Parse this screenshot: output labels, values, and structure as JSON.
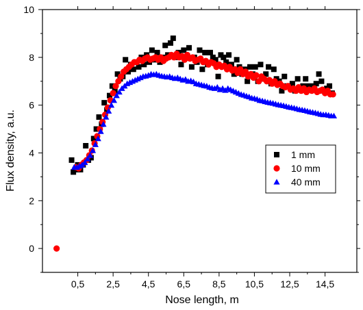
{
  "chart_data": {
    "type": "scatter",
    "title": "",
    "xlabel": "Nose length, m",
    "ylabel": "Flux density, a.u.",
    "xlim": [
      -1.5,
      16.3
    ],
    "ylim": [
      -1,
      10
    ],
    "x_ticks": [
      0.5,
      2.5,
      4.5,
      6.5,
      8.5,
      10.5,
      12.5,
      14.5
    ],
    "x_tick_labels": [
      "0,5",
      "2,5",
      "4,5",
      "6,5",
      "8,5",
      "10,5",
      "12,5",
      "14,5"
    ],
    "y_ticks": [
      0,
      2,
      4,
      6,
      8,
      10
    ],
    "y_tick_labels": [
      "0",
      "2",
      "4",
      "6",
      "8",
      "10"
    ],
    "grid": false,
    "legend_position": "center-right",
    "series": [
      {
        "name": "1 mm",
        "marker": "square",
        "color": "#000000",
        "x": [
          0.15,
          0.25,
          0.35,
          0.5,
          0.65,
          0.8,
          0.95,
          1.1,
          1.25,
          1.4,
          1.55,
          1.7,
          1.85,
          2.0,
          2.15,
          2.3,
          2.45,
          2.6,
          2.75,
          2.9,
          3.05,
          3.2,
          3.35,
          3.5,
          3.65,
          3.8,
          3.95,
          4.1,
          4.25,
          4.4,
          4.55,
          4.7,
          4.85,
          5.0,
          5.15,
          5.3,
          5.45,
          5.6,
          5.75,
          5.9,
          6.05,
          6.2,
          6.35,
          6.5,
          6.65,
          6.8,
          6.95,
          7.1,
          7.25,
          7.4,
          7.55,
          7.7,
          7.85,
          8.0,
          8.15,
          8.3,
          8.45,
          8.6,
          8.75,
          8.9,
          9.05,
          9.2,
          9.35,
          9.5,
          9.65,
          9.8,
          9.95,
          10.1,
          10.25,
          10.4,
          10.55,
          10.7,
          10.85,
          11.0,
          11.15,
          11.3,
          11.45,
          11.6,
          11.75,
          11.9,
          12.05,
          12.2,
          12.35,
          12.5,
          12.65,
          12.8,
          12.95,
          13.1,
          13.25,
          13.4,
          13.55,
          13.7,
          13.85,
          14.0,
          14.15,
          14.3,
          14.45,
          14.6,
          14.75,
          14.9
        ],
        "y": [
          3.7,
          3.2,
          3.3,
          3.5,
          3.3,
          3.5,
          4.3,
          3.7,
          3.8,
          4.6,
          5.0,
          5.5,
          5.2,
          6.1,
          5.8,
          6.4,
          6.8,
          6.6,
          7.3,
          7.1,
          7.2,
          7.9,
          7.4,
          7.7,
          7.5,
          7.8,
          7.6,
          8.0,
          7.7,
          8.1,
          7.8,
          8.3,
          7.9,
          8.2,
          7.8,
          8.0,
          8.5,
          8.1,
          8.6,
          8.8,
          8.0,
          8.2,
          7.7,
          8.3,
          8.0,
          8.4,
          7.6,
          8.0,
          7.8,
          8.3,
          7.5,
          8.2,
          7.7,
          8.2,
          8.0,
          7.9,
          7.2,
          8.1,
          8.0,
          7.8,
          8.1,
          7.7,
          7.3,
          7.9,
          7.6,
          7.3,
          7.5,
          7.0,
          7.6,
          7.3,
          7.6,
          7.0,
          7.7,
          7.1,
          7.3,
          7.6,
          6.9,
          7.5,
          7.1,
          7.0,
          6.6,
          7.2,
          6.8,
          6.8,
          6.9,
          6.6,
          7.1,
          6.7,
          6.8,
          7.1,
          6.8,
          6.7,
          6.8,
          6.9,
          7.3,
          7.0,
          6.6,
          6.7,
          6.8,
          6.5
        ]
      },
      {
        "name": "10 mm",
        "marker": "circle",
        "color": "#ff0000",
        "x": [
          -0.7,
          0.4,
          0.55,
          0.7,
          0.85,
          1.0,
          1.15,
          1.3,
          1.45,
          1.6,
          1.75,
          1.9,
          2.05,
          2.2,
          2.35,
          2.5,
          2.65,
          2.8,
          2.95,
          3.1,
          3.25,
          3.4,
          3.55,
          3.7,
          3.85,
          4.0,
          4.15,
          4.3,
          4.45,
          4.6,
          4.75,
          4.9,
          5.05,
          5.2,
          5.35,
          5.5,
          5.65,
          5.8,
          5.95,
          6.1,
          6.25,
          6.4,
          6.55,
          6.7,
          6.85,
          7.0,
          7.15,
          7.3,
          7.45,
          7.6,
          7.75,
          7.9,
          8.05,
          8.2,
          8.35,
          8.5,
          8.65,
          8.8,
          8.95,
          9.1,
          9.25,
          9.4,
          9.55,
          9.7,
          9.85,
          10.0,
          10.15,
          10.3,
          10.45,
          10.6,
          10.75,
          10.9,
          11.05,
          11.2,
          11.35,
          11.5,
          11.65,
          11.8,
          11.95,
          12.1,
          12.25,
          12.4,
          12.55,
          12.7,
          12.85,
          13.0,
          13.15,
          13.3,
          13.45,
          13.6,
          13.75,
          13.9,
          14.05,
          14.2,
          14.35,
          14.5,
          14.65,
          14.8,
          14.95
        ],
        "y": [
          0.0,
          3.4,
          3.35,
          3.5,
          3.6,
          3.7,
          3.9,
          4.1,
          4.4,
          4.7,
          5.0,
          5.3,
          5.6,
          5.9,
          6.2,
          6.5,
          6.8,
          7.0,
          7.2,
          7.4,
          7.5,
          7.6,
          7.7,
          7.8,
          7.8,
          7.9,
          7.85,
          7.95,
          8.0,
          7.9,
          7.95,
          8.0,
          7.9,
          8.0,
          7.85,
          7.95,
          8.0,
          8.1,
          8.0,
          8.15,
          8.0,
          8.05,
          7.9,
          8.1,
          7.95,
          8.0,
          7.85,
          7.9,
          7.95,
          7.8,
          7.85,
          7.7,
          7.8,
          7.75,
          7.6,
          7.7,
          7.6,
          7.65,
          7.5,
          7.6,
          7.45,
          7.5,
          7.35,
          7.5,
          7.3,
          7.4,
          7.2,
          7.3,
          7.15,
          7.25,
          7.0,
          7.2,
          7.1,
          7.0,
          7.05,
          6.9,
          7.0,
          6.85,
          6.9,
          6.8,
          6.75,
          6.8,
          6.65,
          6.7,
          6.6,
          6.75,
          6.6,
          6.7,
          6.55,
          6.65,
          6.6,
          6.7,
          6.55,
          6.6,
          6.65,
          6.5,
          6.6,
          6.45,
          6.45
        ]
      },
      {
        "name": "40 mm",
        "marker": "triangle",
        "color": "#0000ff",
        "x": [
          0.3,
          0.45,
          0.6,
          0.75,
          0.9,
          1.05,
          1.2,
          1.35,
          1.5,
          1.65,
          1.8,
          1.95,
          2.1,
          2.25,
          2.4,
          2.55,
          2.7,
          2.85,
          3.0,
          3.15,
          3.3,
          3.45,
          3.6,
          3.75,
          3.9,
          4.05,
          4.2,
          4.35,
          4.5,
          4.65,
          4.8,
          4.95,
          5.1,
          5.25,
          5.4,
          5.55,
          5.7,
          5.85,
          6.0,
          6.15,
          6.3,
          6.45,
          6.6,
          6.75,
          6.9,
          7.05,
          7.2,
          7.35,
          7.5,
          7.65,
          7.8,
          7.95,
          8.1,
          8.25,
          8.4,
          8.55,
          8.7,
          8.85,
          9.0,
          9.15,
          9.3,
          9.45,
          9.6,
          9.75,
          9.9,
          10.05,
          10.2,
          10.35,
          10.5,
          10.65,
          10.8,
          10.95,
          11.1,
          11.25,
          11.4,
          11.55,
          11.7,
          11.85,
          12.0,
          12.15,
          12.3,
          12.45,
          12.6,
          12.75,
          12.9,
          13.05,
          13.2,
          13.35,
          13.5,
          13.65,
          13.8,
          13.95,
          14.1,
          14.25,
          14.4,
          14.55,
          14.7,
          14.85,
          15.0
        ],
        "y": [
          3.4,
          3.4,
          3.45,
          3.5,
          3.6,
          3.75,
          3.9,
          4.1,
          4.35,
          4.6,
          4.9,
          5.2,
          5.5,
          5.75,
          6.0,
          6.2,
          6.4,
          6.55,
          6.7,
          6.8,
          6.9,
          6.95,
          7.0,
          7.05,
          7.1,
          7.15,
          7.2,
          7.22,
          7.25,
          7.3,
          7.28,
          7.3,
          7.25,
          7.22,
          7.2,
          7.18,
          7.2,
          7.15,
          7.12,
          7.15,
          7.1,
          7.05,
          7.08,
          7.0,
          7.02,
          6.98,
          6.9,
          6.88,
          6.85,
          6.82,
          6.8,
          6.75,
          6.72,
          6.7,
          6.75,
          6.65,
          6.7,
          6.62,
          6.7,
          6.65,
          6.6,
          6.55,
          6.5,
          6.45,
          6.42,
          6.38,
          6.35,
          6.3,
          6.28,
          6.25,
          6.2,
          6.18,
          6.15,
          6.12,
          6.1,
          6.08,
          6.05,
          6.02,
          6.0,
          5.98,
          5.95,
          5.92,
          5.9,
          5.88,
          5.85,
          5.82,
          5.8,
          5.78,
          5.75,
          5.72,
          5.7,
          5.68,
          5.65,
          5.62,
          5.6,
          5.6,
          5.58,
          5.55,
          5.55
        ]
      }
    ]
  }
}
